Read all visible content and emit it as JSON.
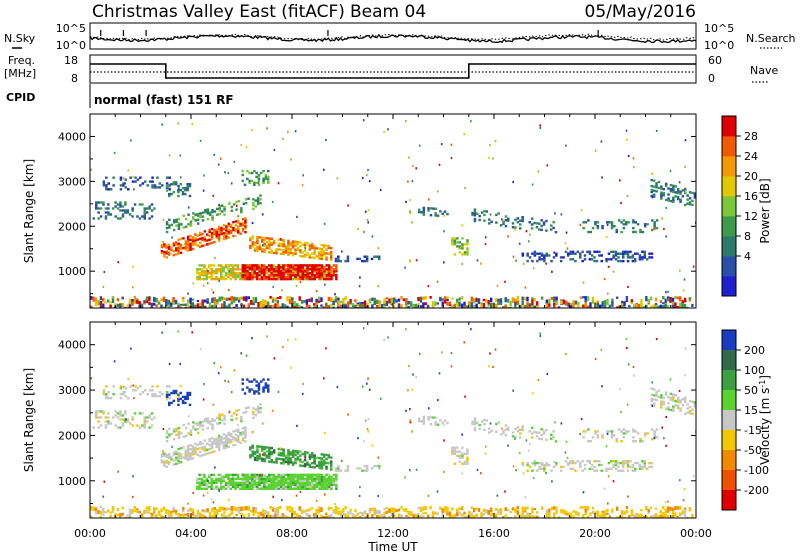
{
  "header": {
    "title": "Christmas Valley East (fitACF)",
    "beam": "Beam 04",
    "date": "05/May/2016"
  },
  "left_labels": {
    "nsky": "N.Sky",
    "freq": "Freq.",
    "freq_unit": "[MHz]",
    "cpid": "CPID"
  },
  "right_labels": {
    "nsearch": "N.Search",
    "nave": "Nave"
  },
  "cpid_text": "normal (fast) 151 RF",
  "colors": {
    "power": [
      "#1f1fd0",
      "#2a4fa8",
      "#2e7a6a",
      "#3d9a4a",
      "#7bc83a",
      "#e3c800",
      "#f39a00",
      "#f05a00",
      "#e00000"
    ],
    "velocity": [
      "#1a3cc0",
      "#2f6a4a",
      "#3aa040",
      "#5ad230",
      "#c7c7c7",
      "#f2c800",
      "#f08a00",
      "#f05000",
      "#e00000"
    ]
  },
  "chart_data": [
    {
      "type": "line",
      "name": "noise",
      "ylabels": [
        "10^5",
        "10^0"
      ],
      "right_ylabels": [
        "10^5",
        "10^0"
      ],
      "series": [
        {
          "name": "N.Sky"
        },
        {
          "name": "N.Search"
        }
      ]
    },
    {
      "type": "line",
      "name": "frequency-nave",
      "ylabels": [
        "18",
        "8"
      ],
      "right_ylabels": [
        "60",
        "0"
      ],
      "x": [
        "00:00",
        "03:00",
        "03:00",
        "15:00",
        "15:00",
        "24:00"
      ],
      "series": [
        {
          "name": "Freq.",
          "values": [
            14.8,
            14.8,
            9.8,
            9.8,
            14.8,
            14.8
          ]
        }
      ]
    },
    {
      "type": "heatmap",
      "name": "power",
      "ylabel": "Slant Range [km]",
      "yticks": [
        "4000",
        "3000",
        "2000",
        "1000"
      ],
      "ylim": [
        180,
        4500
      ],
      "xlim": [
        0,
        24
      ],
      "colorbar_label": "Power [dB]",
      "colorbar_ticks": [
        "28",
        "24",
        "20",
        "16",
        "12",
        "8",
        "4"
      ]
    },
    {
      "type": "heatmap",
      "name": "velocity",
      "ylabel": "Slant Range [km]",
      "yticks": [
        "4000",
        "3000",
        "2000",
        "1000"
      ],
      "ylim": [
        180,
        4500
      ],
      "xlim": [
        0,
        24
      ],
      "colorbar_label": "Velocity [m s",
      "colorbar_label_sup": "-1",
      "colorbar_label_end": "]",
      "colorbar_ticks": [
        "200",
        "100",
        "50",
        "15",
        "-15",
        "-50",
        "-100",
        "-200"
      ],
      "xticks": [
        "00:00",
        "04:00",
        "08:00",
        "12:00",
        "16:00",
        "20:00",
        "00:00"
      ],
      "xlabel": "Time UT"
    }
  ]
}
